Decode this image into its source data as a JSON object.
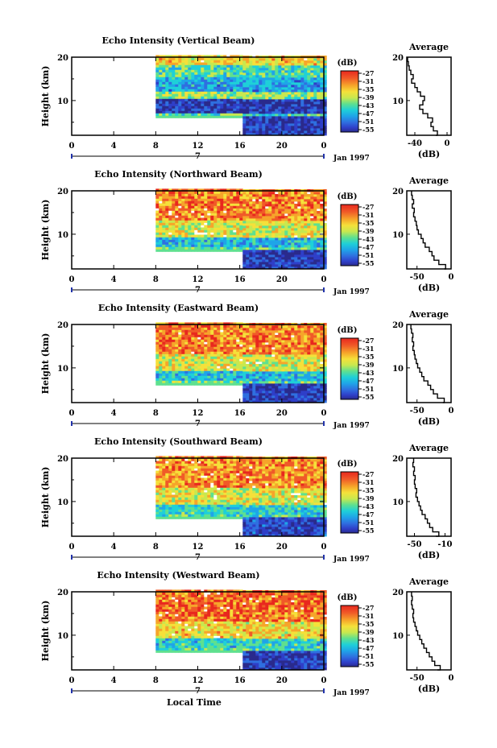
{
  "chart_data": [
    {
      "type": "heatmap",
      "title": "Echo Intensity (Vertical Beam)",
      "ylabel": "Height (km)",
      "ylim": [
        2,
        20
      ],
      "yticks": [
        "20",
        "10"
      ],
      "xlim": [
        0,
        24
      ],
      "xticks": [
        "0",
        "4",
        "8",
        "12",
        "16",
        "20",
        "0"
      ],
      "date_marker": "7",
      "date_label": "Jan 1997",
      "colorbar_label": "(dB)",
      "colorbar_ticks": [
        "-27",
        "-31",
        "-35",
        "-39",
        "-43",
        "-47",
        "-51",
        "-55"
      ],
      "data_extent": {
        "start_hour": 8,
        "end_hour": 24,
        "bottom_km_before_16h": 6,
        "bottom_km_after_16h": 2
      },
      "layers": [
        {
          "from_km": 2,
          "to_km": 6,
          "level": 0.08
        },
        {
          "from_km": 6,
          "to_km": 7,
          "level": 0.45
        },
        {
          "from_km": 7,
          "to_km": 10,
          "level": 0.06
        },
        {
          "from_km": 10,
          "to_km": 12,
          "level": 0.55
        },
        {
          "from_km": 12,
          "to_km": 15,
          "level": 0.3
        },
        {
          "from_km": 15,
          "to_km": 18,
          "level": 0.45
        },
        {
          "from_km": 18,
          "to_km": 20,
          "level": 0.7
        }
      ],
      "average": {
        "title": "Average",
        "xlabel": "(dB)",
        "xlim": [
          -50,
          5
        ],
        "xticks": [
          "-40",
          "0"
        ],
        "yticks": [
          "20",
          "10"
        ],
        "profile": [
          [
            -14,
            2
          ],
          [
            -12,
            3
          ],
          [
            -17,
            4
          ],
          [
            -20,
            5
          ],
          [
            -18,
            6
          ],
          [
            -24,
            7
          ],
          [
            -30,
            8
          ],
          [
            -34,
            9
          ],
          [
            -30,
            10
          ],
          [
            -28,
            11
          ],
          [
            -33,
            12
          ],
          [
            -37,
            13
          ],
          [
            -40,
            14
          ],
          [
            -44,
            15
          ],
          [
            -42,
            16
          ],
          [
            -45,
            17
          ],
          [
            -47,
            18
          ],
          [
            -48,
            19
          ],
          [
            -49,
            20
          ]
        ]
      }
    },
    {
      "type": "heatmap",
      "title": "Echo Intensity (Northward Beam)",
      "ylabel": "Height (km)",
      "ylim": [
        2,
        20
      ],
      "yticks": [
        "20",
        "10"
      ],
      "xlim": [
        0,
        24
      ],
      "xticks": [
        "0",
        "4",
        "8",
        "12",
        "16",
        "20",
        "0"
      ],
      "date_marker": "7",
      "date_label": "Jan 1997",
      "colorbar_label": "(dB)",
      "colorbar_ticks": [
        "-27",
        "-31",
        "-35",
        "-39",
        "-43",
        "-47",
        "-51",
        "-55"
      ],
      "data_extent": {
        "start_hour": 8,
        "end_hour": 24,
        "bottom_km_before_16h": 6,
        "bottom_km_after_16h": 2
      },
      "layers": [
        {
          "from_km": 2,
          "to_km": 6,
          "level": 0.08
        },
        {
          "from_km": 6,
          "to_km": 7,
          "level": 0.5
        },
        {
          "from_km": 7,
          "to_km": 9,
          "level": 0.35
        },
        {
          "from_km": 9,
          "to_km": 13,
          "level": 0.65
        },
        {
          "from_km": 13,
          "to_km": 20,
          "level": 0.85
        }
      ],
      "average": {
        "title": "Average",
        "xlabel": "(dB)",
        "xlim": [
          -65,
          0
        ],
        "xticks": [
          "-50",
          "0"
        ],
        "yticks": [
          "20",
          "10"
        ],
        "profile": [
          [
            -10,
            2
          ],
          [
            -8,
            3
          ],
          [
            -18,
            4
          ],
          [
            -25,
            5
          ],
          [
            -28,
            6
          ],
          [
            -32,
            7
          ],
          [
            -38,
            8
          ],
          [
            -41,
            9
          ],
          [
            -44,
            10
          ],
          [
            -48,
            11
          ],
          [
            -50,
            12
          ],
          [
            -51,
            13
          ],
          [
            -53,
            14
          ],
          [
            -55,
            15
          ],
          [
            -54,
            16
          ],
          [
            -57,
            17
          ],
          [
            -55,
            18
          ],
          [
            -57,
            19
          ],
          [
            -58,
            20
          ]
        ]
      }
    },
    {
      "type": "heatmap",
      "title": "Echo Intensity (Eastward Beam)",
      "ylabel": "Height (km)",
      "ylim": [
        2,
        20
      ],
      "yticks": [
        "20",
        "10"
      ],
      "xlim": [
        0,
        24
      ],
      "xticks": [
        "0",
        "4",
        "8",
        "12",
        "16",
        "20",
        "0"
      ],
      "date_marker": "7",
      "date_label": "Jan 1997",
      "colorbar_label": "(dB)",
      "colorbar_ticks": [
        "-27",
        "-31",
        "-35",
        "-39",
        "-43",
        "-47",
        "-51",
        "-55"
      ],
      "data_extent": {
        "start_hour": 8,
        "end_hour": 24,
        "bottom_km_before_16h": 6,
        "bottom_km_after_16h": 2
      },
      "layers": [
        {
          "from_km": 2,
          "to_km": 6,
          "level": 0.08
        },
        {
          "from_km": 6,
          "to_km": 7,
          "level": 0.5
        },
        {
          "from_km": 7,
          "to_km": 9,
          "level": 0.35
        },
        {
          "from_km": 9,
          "to_km": 13,
          "level": 0.65
        },
        {
          "from_km": 13,
          "to_km": 20,
          "level": 0.85
        }
      ],
      "average": {
        "title": "Average",
        "xlabel": "(dB)",
        "xlim": [
          -65,
          0
        ],
        "xticks": [
          "-50",
          "0"
        ],
        "yticks": [
          "20",
          "10"
        ],
        "profile": [
          [
            -12,
            2
          ],
          [
            -10,
            3
          ],
          [
            -20,
            4
          ],
          [
            -26,
            5
          ],
          [
            -30,
            6
          ],
          [
            -34,
            7
          ],
          [
            -40,
            8
          ],
          [
            -43,
            9
          ],
          [
            -46,
            10
          ],
          [
            -49,
            11
          ],
          [
            -51,
            12
          ],
          [
            -53,
            13
          ],
          [
            -54,
            14
          ],
          [
            -56,
            15
          ],
          [
            -55,
            16
          ],
          [
            -57,
            17
          ],
          [
            -56,
            18
          ],
          [
            -58,
            19
          ],
          [
            -59,
            20
          ]
        ]
      }
    },
    {
      "type": "heatmap",
      "title": "Echo Intensity (Southward Beam)",
      "ylabel": "Height (km)",
      "ylim": [
        2,
        20
      ],
      "yticks": [
        "20",
        "10"
      ],
      "xlim": [
        0,
        24
      ],
      "xticks": [
        "0",
        "4",
        "8",
        "12",
        "16",
        "20",
        "0"
      ],
      "date_marker": "7",
      "date_label": "Jan 1997",
      "colorbar_label": "(dB)",
      "colorbar_ticks": [
        "-27",
        "-31",
        "-35",
        "-39",
        "-43",
        "-47",
        "-51",
        "-55"
      ],
      "data_extent": {
        "start_hour": 8,
        "end_hour": 24,
        "bottom_km_before_16h": 6,
        "bottom_km_after_16h": 2
      },
      "layers": [
        {
          "from_km": 2,
          "to_km": 6,
          "level": 0.1
        },
        {
          "from_km": 6,
          "to_km": 7,
          "level": 0.45
        },
        {
          "from_km": 7,
          "to_km": 9,
          "level": 0.4
        },
        {
          "from_km": 9,
          "to_km": 13,
          "level": 0.65
        },
        {
          "from_km": 13,
          "to_km": 20,
          "level": 0.82
        }
      ],
      "average": {
        "title": "Average",
        "xlabel": "(dB)",
        "xlim": [
          -60,
          -2
        ],
        "xticks": [
          "-50",
          "-10"
        ],
        "yticks": [
          "20",
          "10"
        ],
        "profile": [
          [
            -22,
            2
          ],
          [
            -18,
            3
          ],
          [
            -26,
            4
          ],
          [
            -30,
            5
          ],
          [
            -33,
            6
          ],
          [
            -36,
            7
          ],
          [
            -40,
            8
          ],
          [
            -42,
            9
          ],
          [
            -44,
            10
          ],
          [
            -46,
            11
          ],
          [
            -48,
            12
          ],
          [
            -47,
            13
          ],
          [
            -49,
            14
          ],
          [
            -50,
            15
          ],
          [
            -49,
            16
          ],
          [
            -51,
            17
          ],
          [
            -50,
            18
          ],
          [
            -52,
            19
          ],
          [
            -51,
            20
          ]
        ]
      }
    },
    {
      "type": "heatmap",
      "title": "Echo Intensity (Westward Beam)",
      "ylabel": "Height (km)",
      "ylim": [
        2,
        20
      ],
      "yticks": [
        "20",
        "10"
      ],
      "xlim": [
        0,
        24
      ],
      "xticks": [
        "0",
        "4",
        "8",
        "12",
        "16",
        "20",
        "0"
      ],
      "date_marker": "7",
      "date_label": "Jan 1997",
      "colorbar_label": "(dB)",
      "colorbar_ticks": [
        "-27",
        "-31",
        "-35",
        "-39",
        "-43",
        "-47",
        "-51",
        "-55"
      ],
      "data_extent": {
        "start_hour": 8,
        "end_hour": 24,
        "bottom_km_before_16h": 6,
        "bottom_km_after_16h": 2
      },
      "layers": [
        {
          "from_km": 2,
          "to_km": 6,
          "level": 0.08
        },
        {
          "from_km": 6,
          "to_km": 7,
          "level": 0.45
        },
        {
          "from_km": 7,
          "to_km": 9,
          "level": 0.4
        },
        {
          "from_km": 9,
          "to_km": 13,
          "level": 0.7
        },
        {
          "from_km": 13,
          "to_km": 20,
          "level": 0.88
        }
      ],
      "average": {
        "title": "Average",
        "xlabel": "(dB)",
        "xlim": [
          -65,
          0
        ],
        "xticks": [
          "-50",
          "0"
        ],
        "yticks": [
          "20",
          "10"
        ],
        "profile": [
          [
            -20,
            2
          ],
          [
            -16,
            3
          ],
          [
            -24,
            4
          ],
          [
            -28,
            5
          ],
          [
            -32,
            6
          ],
          [
            -36,
            7
          ],
          [
            -40,
            8
          ],
          [
            -43,
            9
          ],
          [
            -46,
            10
          ],
          [
            -49,
            11
          ],
          [
            -51,
            12
          ],
          [
            -53,
            13
          ],
          [
            -55,
            14
          ],
          [
            -56,
            15
          ],
          [
            -55,
            16
          ],
          [
            -57,
            17
          ],
          [
            -58,
            18
          ],
          [
            -57,
            19
          ],
          [
            -58,
            20
          ]
        ]
      }
    }
  ],
  "footer": {
    "xlabel": "Local Time"
  },
  "colormap": [
    "#2a2a8c",
    "#2f3fc8",
    "#2f6fe0",
    "#1fa5e8",
    "#1fd0d8",
    "#5fe08f",
    "#c8e84f",
    "#f5e03a",
    "#f6a52a",
    "#f05a28",
    "#e8281e"
  ]
}
